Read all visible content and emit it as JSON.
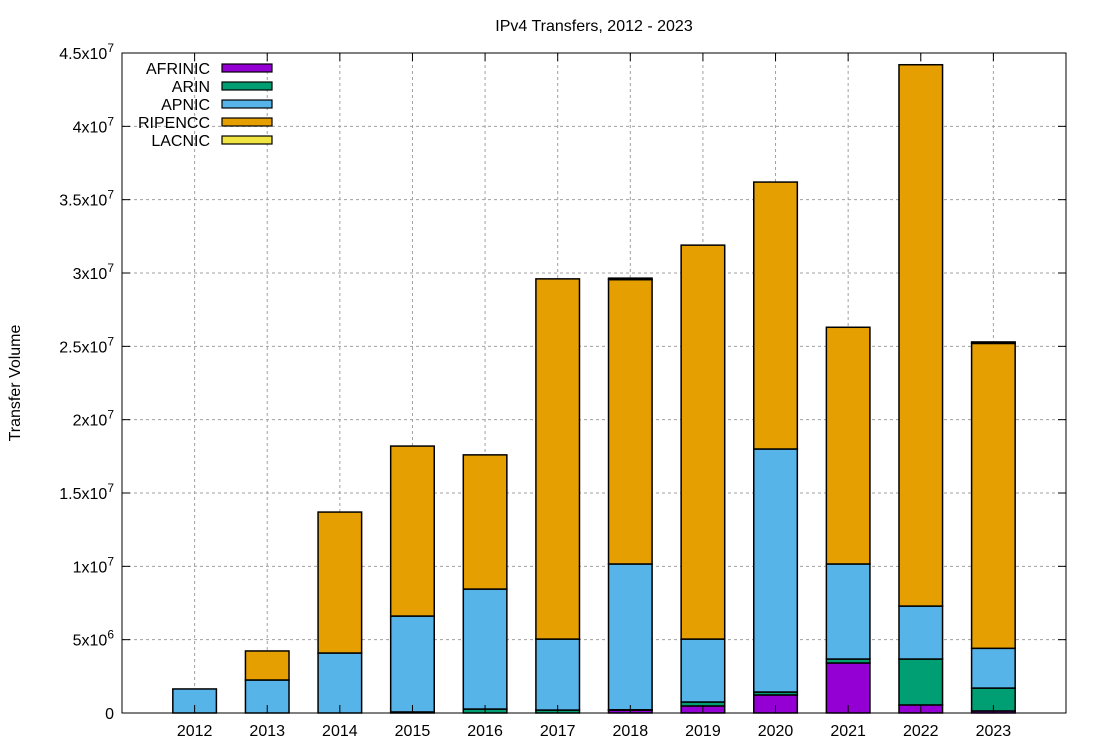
{
  "chart_data": {
    "type": "bar",
    "stacked": true,
    "title": "IPv4 Transfers, 2012 - 2023",
    "xlabel": "",
    "ylabel": "Transfer Volume",
    "categories": [
      "2012",
      "2013",
      "2014",
      "2015",
      "2016",
      "2017",
      "2018",
      "2019",
      "2020",
      "2021",
      "2022",
      "2023"
    ],
    "ylim": [
      0,
      45000000
    ],
    "yticks": [
      {
        "value": 0,
        "base": "0",
        "exp": ""
      },
      {
        "value": 5000000,
        "base": "5x10",
        "exp": "6"
      },
      {
        "value": 10000000,
        "base": "1x10",
        "exp": "7"
      },
      {
        "value": 15000000,
        "base": "1.5x10",
        "exp": "7"
      },
      {
        "value": 20000000,
        "base": "2x10",
        "exp": "7"
      },
      {
        "value": 25000000,
        "base": "2.5x10",
        "exp": "7"
      },
      {
        "value": 30000000,
        "base": "3x10",
        "exp": "7"
      },
      {
        "value": 35000000,
        "base": "3.5x10",
        "exp": "7"
      },
      {
        "value": 40000000,
        "base": "4x10",
        "exp": "7"
      },
      {
        "value": 45000000,
        "base": "4.5x10",
        "exp": "7"
      }
    ],
    "grid": true,
    "legend_position": "top-left",
    "series": [
      {
        "name": "AFRINIC",
        "color": "#9400d3",
        "values": [
          0,
          0,
          0,
          0,
          0,
          0,
          200000,
          480000,
          1230000,
          3410000,
          550000,
          140000
        ]
      },
      {
        "name": "ARIN",
        "color": "#009e73",
        "values": [
          0,
          0,
          0,
          70000,
          270000,
          200000,
          20000,
          270000,
          200000,
          270000,
          3130000,
          1560000
        ]
      },
      {
        "name": "APNIC",
        "color": "#56b4e9",
        "values": [
          1640000,
          2250000,
          4090000,
          6540000,
          8180000,
          4840000,
          9940000,
          4290000,
          16570000,
          6480000,
          3610000,
          2710000
        ]
      },
      {
        "name": "RIPENCC",
        "color": "#e69f00",
        "values": [
          0,
          1980000,
          9610000,
          11590000,
          9150000,
          24560000,
          19390000,
          26860000,
          18200000,
          16140000,
          36910000,
          20790000
        ]
      },
      {
        "name": "LACNIC",
        "color": "#f0e442",
        "values": [
          0,
          0,
          0,
          0,
          0,
          0,
          100000,
          0,
          0,
          0,
          0,
          100000
        ]
      }
    ]
  }
}
